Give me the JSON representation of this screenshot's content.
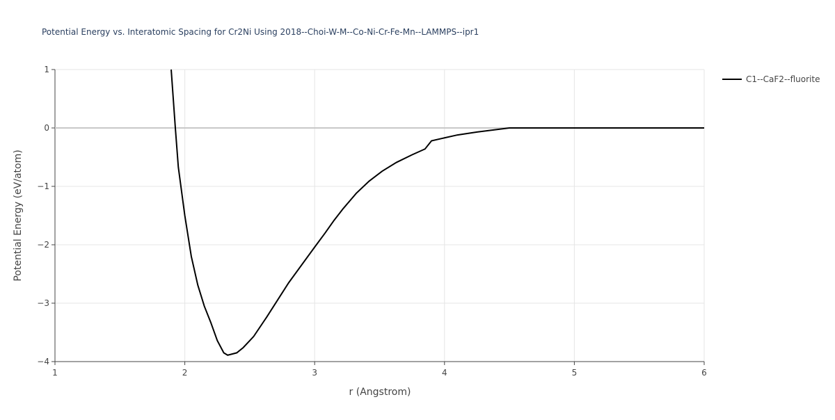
{
  "chart_data": {
    "type": "line",
    "title": "Potential Energy vs. Interatomic Spacing for Cr2Ni Using 2018--Choi-W-M--Co-Ni-Cr-Fe-Mn--LAMMPS--ipr1",
    "x_label": "r (Angstrom)",
    "y_label": "Potential Energy (eV/atom)",
    "x": [
      1.895,
      1.927,
      1.95,
      2.0,
      2.05,
      2.1,
      2.15,
      2.2,
      2.25,
      2.3,
      2.33,
      2.4,
      2.45,
      2.53,
      2.63,
      2.8,
      3.0,
      3.08,
      3.15,
      3.22,
      3.32,
      3.42,
      3.52,
      3.63,
      3.75,
      3.85,
      3.9,
      4.0,
      4.1,
      4.25,
      4.5,
      6.0
    ],
    "series": [
      {
        "name": "C1--CaF2--fluorite",
        "color": "#000000",
        "values": [
          1.0,
          0.0,
          -0.67,
          -1.5,
          -2.2,
          -2.69,
          -3.05,
          -3.33,
          -3.64,
          -3.85,
          -3.89,
          -3.85,
          -3.76,
          -3.57,
          -3.24,
          -2.65,
          -2.04,
          -1.8,
          -1.58,
          -1.38,
          -1.12,
          -0.91,
          -0.74,
          -0.59,
          -0.46,
          -0.36,
          -0.22,
          -0.17,
          -0.12,
          -0.07,
          0.0,
          0.0
        ]
      }
    ],
    "xlim": [
      1,
      6
    ],
    "xticks": [
      1,
      2,
      3,
      4,
      5,
      6
    ],
    "ylim": [
      -4,
      1
    ],
    "yticks": [
      {
        "value": -4,
        "label": "−4"
      },
      {
        "value": -3,
        "label": "−3"
      },
      {
        "value": -2,
        "label": "−2"
      },
      {
        "value": -1,
        "label": "−1"
      },
      0,
      1
    ],
    "grid": true
  }
}
